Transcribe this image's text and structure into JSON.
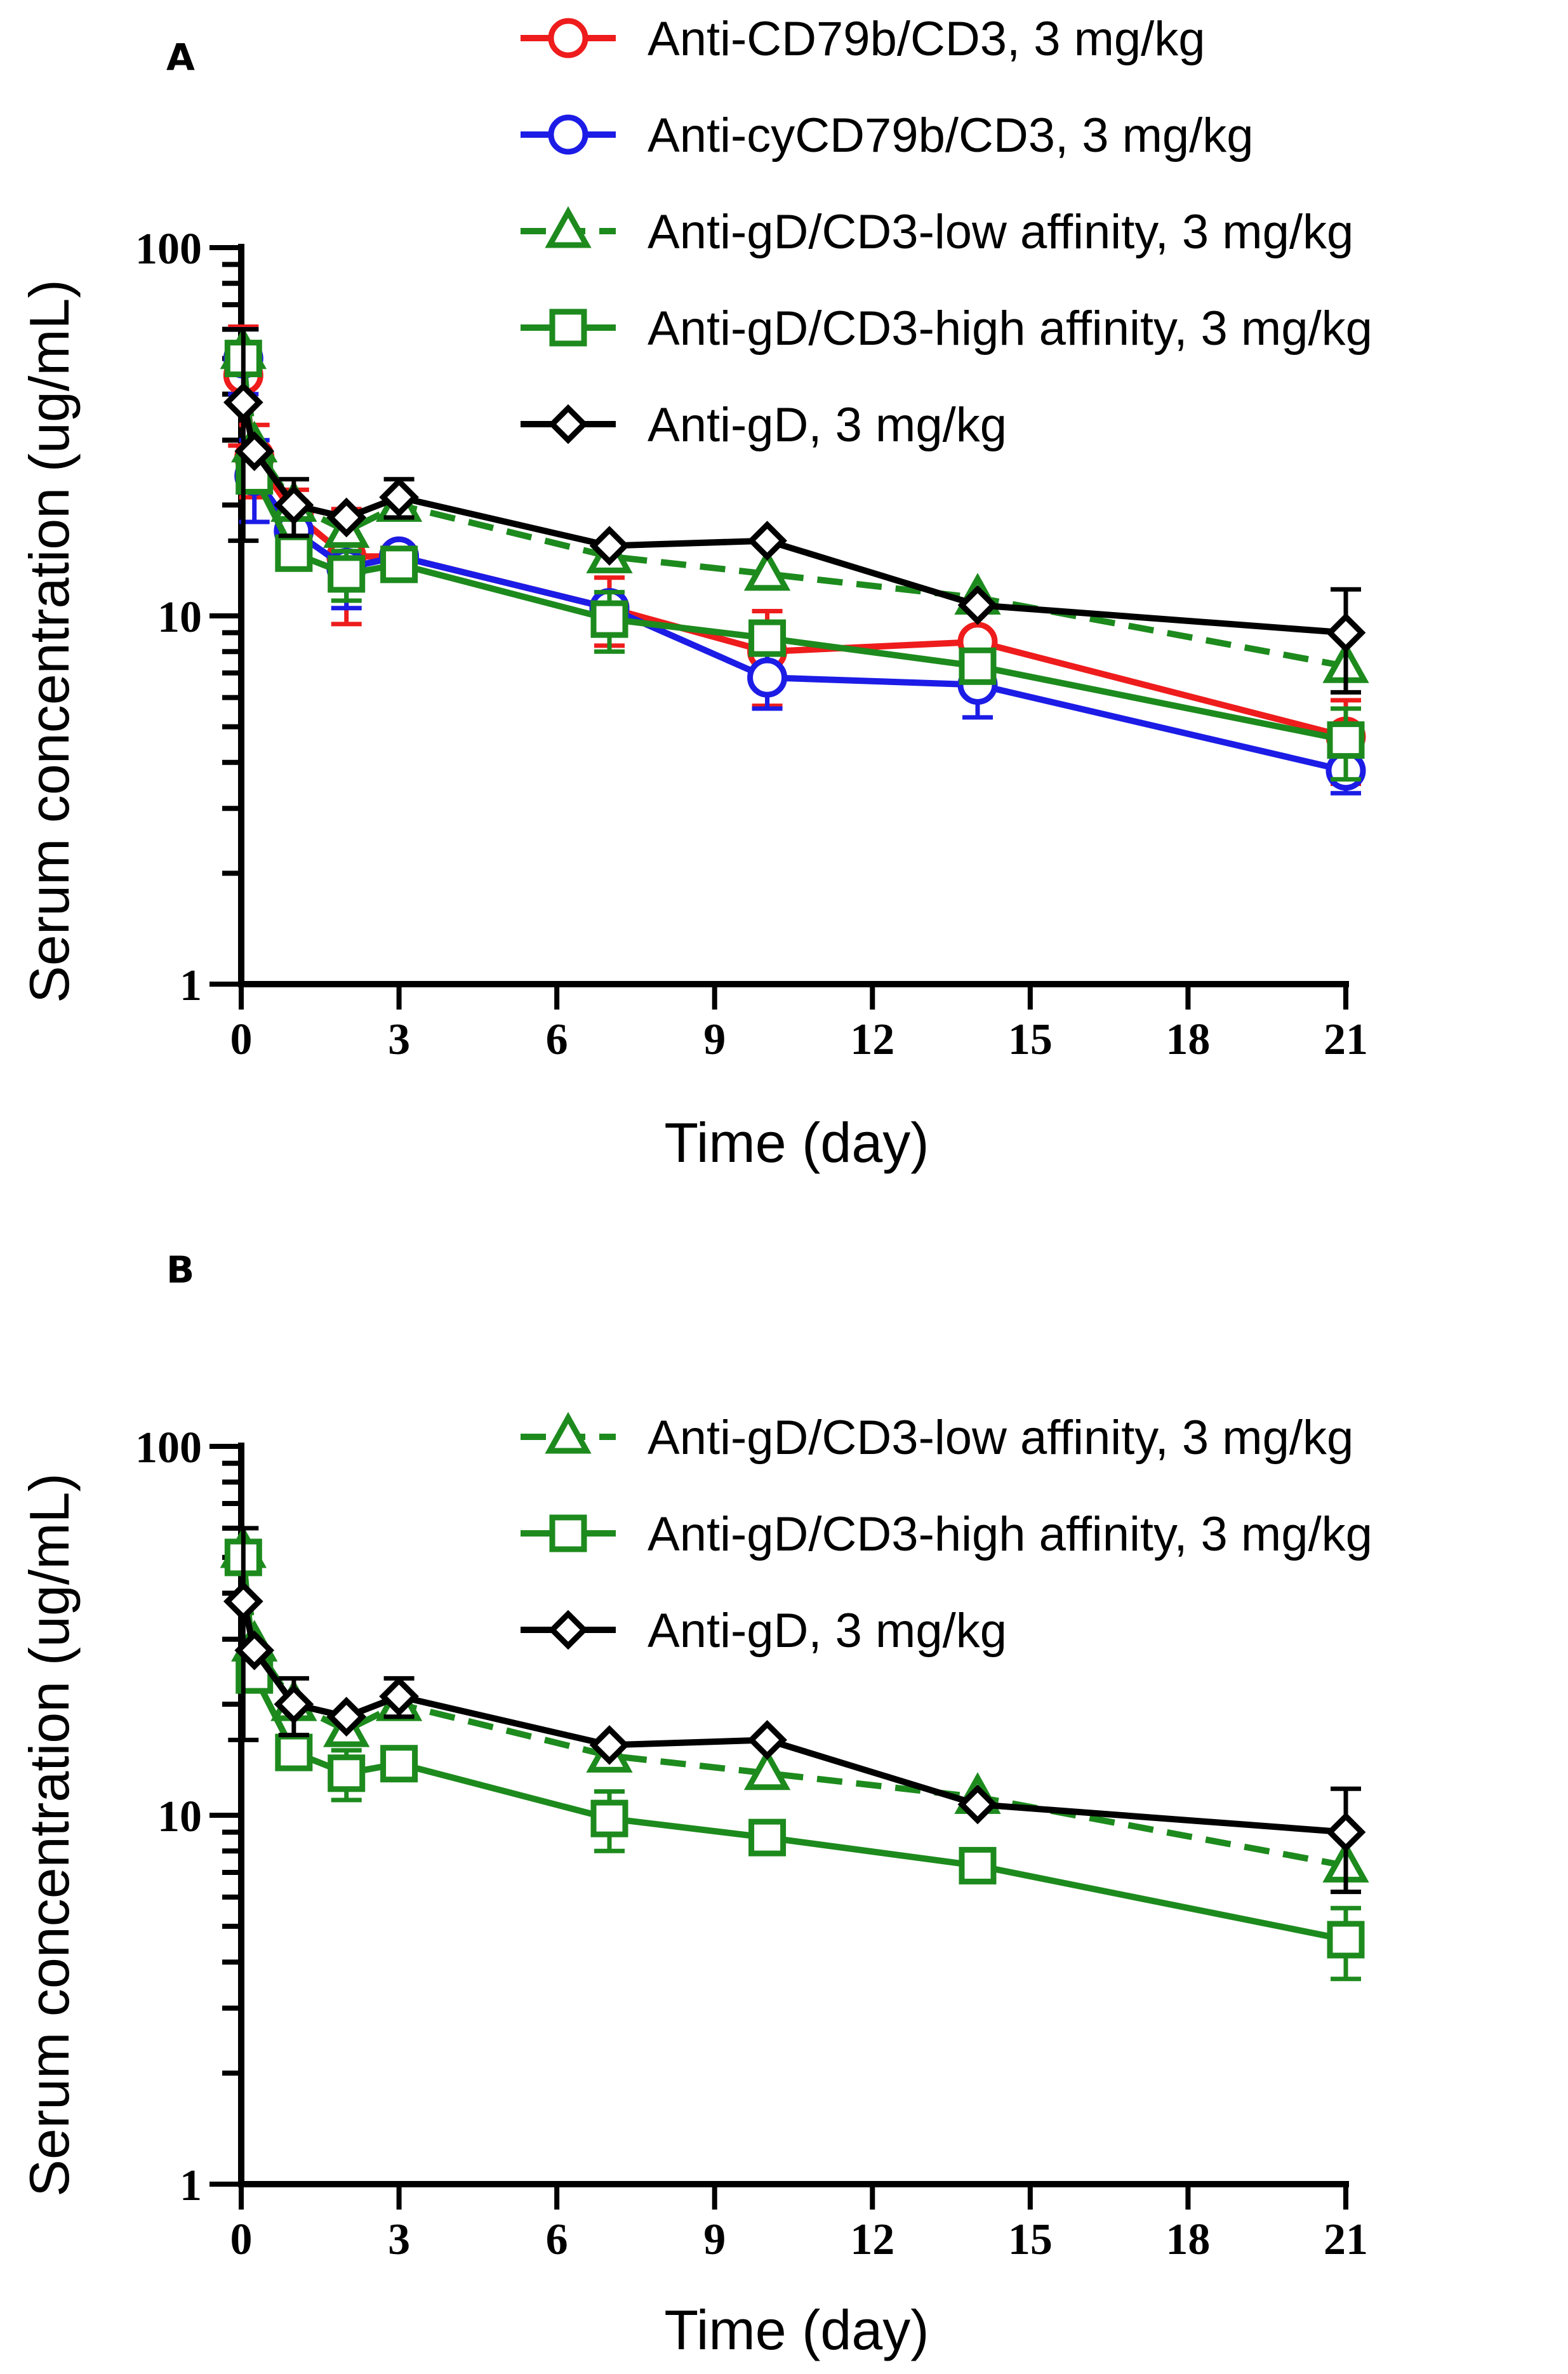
{
  "colors": {
    "red": "#ee1c1c",
    "blue": "#1c1ce6",
    "green": "#1d8a1d",
    "black": "#000000"
  },
  "chart_data": [
    {
      "type": "line",
      "panel_label": "A",
      "xlabel": "Time (day)",
      "ylabel": "Serum concentration (ug/mL)",
      "yscale": "log",
      "xlim": [
        0,
        21
      ],
      "ylim": [
        1,
        100
      ],
      "x_ticks": [
        "0",
        "3",
        "6",
        "9",
        "12",
        "15",
        "18",
        "21"
      ],
      "y_ticks": [
        "1",
        "10",
        "100"
      ],
      "legend_position": "top-right",
      "series": [
        {
          "name": "Anti-CD79b/CD3, 3 mg/kg",
          "color": "red",
          "marker": "circle",
          "dash": false,
          "x": [
            0.04,
            0.25,
            1,
            2,
            3,
            7,
            10,
            14,
            21
          ],
          "y": [
            45,
            27,
            19,
            14.5,
            14.5,
            10.5,
            8,
            8.5,
            4.7
          ],
          "err": [
            16,
            6,
            3,
            5,
            0,
            2.2,
            2.3,
            0,
            1.2
          ]
        },
        {
          "name": "Anti-cyCD79b/CD3, 3 mg/kg",
          "color": "blue",
          "marker": "circle",
          "dash": false,
          "x": [
            0.04,
            0.25,
            1,
            2,
            3,
            7,
            10,
            14,
            21
          ],
          "y": [
            50,
            24,
            17,
            13.5,
            14.5,
            10.5,
            6.8,
            6.5,
            3.8
          ],
          "err": [
            10,
            6,
            2,
            3,
            0,
            0,
            1.2,
            1.2,
            0.5
          ]
        },
        {
          "name": "Anti-gD/CD3-low affinity, 3 mg/kg",
          "color": "green",
          "marker": "triangle",
          "dash": true,
          "x": [
            0.04,
            0.25,
            1,
            2,
            3,
            7,
            10,
            14,
            21
          ],
          "y": [
            52,
            29,
            20,
            17,
            20,
            14.5,
            13,
            11.2,
            7.3
          ],
          "err": [
            0,
            0,
            0,
            0,
            0,
            0,
            0,
            0,
            0
          ]
        },
        {
          "name": "Anti-gD/CD3-high affinity, 3 mg/kg",
          "color": "green",
          "marker": "square",
          "dash": false,
          "x": [
            0.04,
            0.25,
            1,
            2,
            3,
            7,
            10,
            14,
            21
          ],
          "y": [
            50,
            24,
            14.8,
            13,
            13.8,
            9.8,
            8.7,
            7.3,
            4.6
          ],
          "err": [
            0,
            0,
            0,
            2,
            0,
            1.8,
            0,
            0,
            1
          ]
        },
        {
          "name": "Anti-gD, 3 mg/kg",
          "color": "black",
          "marker": "diamond",
          "dash": false,
          "x": [
            0.04,
            0.25,
            1,
            2,
            3,
            7,
            10,
            14,
            21
          ],
          "y": [
            38,
            28,
            20,
            18.5,
            21,
            15.5,
            16,
            10.7,
            9
          ],
          "err": [
            22,
            0,
            3.5,
            0,
            2.5,
            0,
            0,
            0,
            2.8
          ]
        }
      ]
    },
    {
      "type": "line",
      "panel_label": "B",
      "xlabel": "Time (day)",
      "ylabel": "Serum concentration (ug/mL)",
      "yscale": "log",
      "xlim": [
        0,
        21
      ],
      "ylim": [
        1,
        100
      ],
      "x_ticks": [
        "0",
        "3",
        "6",
        "9",
        "12",
        "15",
        "18",
        "21"
      ],
      "y_ticks": [
        "1",
        "10",
        "100"
      ],
      "legend_position": "top-right",
      "series": [
        {
          "name": "Anti-gD/CD3-low affinity, 3 mg/kg",
          "color": "green",
          "marker": "triangle",
          "dash": true,
          "x": [
            0.04,
            0.25,
            1,
            2,
            3,
            7,
            10,
            14,
            21
          ],
          "y": [
            52,
            29,
            20,
            17,
            20,
            14.5,
            13,
            11.2,
            7.3
          ],
          "err": [
            0,
            0,
            0,
            0,
            0,
            0,
            0,
            0,
            0
          ]
        },
        {
          "name": "Anti-gD/CD3-high affinity, 3 mg/kg",
          "color": "green",
          "marker": "square",
          "dash": false,
          "x": [
            0.04,
            0.25,
            1,
            2,
            3,
            7,
            10,
            14,
            21
          ],
          "y": [
            50,
            24,
            14.8,
            13,
            13.8,
            9.8,
            8.7,
            7.3,
            4.6
          ],
          "err": [
            0,
            0,
            0,
            2,
            0,
            1.8,
            0,
            0,
            1
          ]
        },
        {
          "name": "Anti-gD, 3 mg/kg",
          "color": "black",
          "marker": "diamond",
          "dash": false,
          "x": [
            0.04,
            0.25,
            1,
            2,
            3,
            7,
            10,
            14,
            21
          ],
          "y": [
            38,
            28,
            20,
            18.5,
            21,
            15.5,
            16,
            10.7,
            9
          ],
          "err": [
            22,
            0,
            3.5,
            0,
            2.5,
            0,
            0,
            0,
            2.8
          ]
        }
      ]
    }
  ]
}
